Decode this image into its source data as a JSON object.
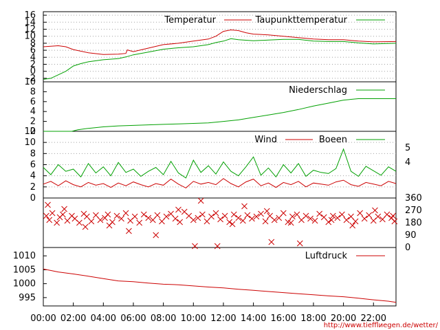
{
  "colors": {
    "red": "#cc0000",
    "green": "#00a000",
    "grid": "#a0a0a0",
    "frame": "#000000"
  },
  "credit": "http://www.tiefflиegen.de/wetter/",
  "x_axis": {
    "range_hours": [
      0,
      23.5
    ],
    "tick_hours": [
      0,
      2,
      4,
      6,
      8,
      10,
      12,
      14,
      16,
      18,
      20,
      22
    ],
    "tick_labels": [
      "00:00",
      "02:00",
      "04:00",
      "06:00",
      "08:00",
      "10:00",
      "12:00",
      "14:00",
      "16:00",
      "18:00",
      "20:00",
      "22:00"
    ]
  },
  "chart_data": [
    {
      "type": "line",
      "panel": "temperature",
      "ylim": [
        -3,
        17
      ],
      "y_ticks": [
        -2,
        0,
        2,
        4,
        6,
        8,
        10,
        12,
        14,
        16
      ],
      "y_tick_labels": [
        "-2",
        "0",
        "2",
        "4",
        "6",
        "8",
        "10",
        "12",
        "14",
        "16"
      ],
      "grid": true,
      "legend": "top-right",
      "series": [
        {
          "name": "Temperatur",
          "color": "#cc0000",
          "x": [
            0,
            1,
            1.5,
            2,
            3,
            4,
            5,
            5.5,
            5.6,
            6,
            7,
            8,
            9,
            10,
            11,
            11.5,
            12,
            12.5,
            13,
            13.5,
            14,
            15,
            16,
            17,
            18,
            19,
            20,
            21,
            22,
            23.5
          ],
          "y": [
            7,
            7.3,
            7,
            6.2,
            5.3,
            4.8,
            4.9,
            5.1,
            6.1,
            5.6,
            6.6,
            7.6,
            8,
            8.6,
            9.2,
            10,
            11.4,
            11.8,
            11.6,
            11,
            10.6,
            10.4,
            10,
            9.6,
            9.2,
            9,
            9,
            8.6,
            8.4,
            8.5
          ]
        },
        {
          "name": "Taupunkttemperatur",
          "color": "#00a000",
          "x": [
            0,
            0.5,
            1,
            1.5,
            2,
            2.5,
            3,
            4,
            5,
            5.5,
            6,
            7,
            8,
            9,
            10,
            11,
            11.5,
            12,
            12.5,
            13,
            14,
            15,
            16,
            17,
            18,
            19,
            20,
            21,
            22,
            23.5
          ],
          "y": [
            -2.3,
            -2,
            -1,
            0,
            1.5,
            2.2,
            2.7,
            3.3,
            3.6,
            4.1,
            4.7,
            5.5,
            6.3,
            6.7,
            7,
            7.6,
            8.2,
            8.6,
            9.3,
            9,
            8.7,
            8.9,
            9.1,
            9.1,
            8.6,
            8.5,
            8.5,
            8.1,
            7.8,
            8
          ]
        }
      ]
    },
    {
      "type": "line",
      "panel": "precipitation",
      "ylim": [
        0,
        10
      ],
      "y_ticks": [
        0,
        2,
        4,
        6,
        8,
        10
      ],
      "y_tick_labels": [
        "0",
        "2",
        "4",
        "6",
        "8",
        "10"
      ],
      "grid": false,
      "legend": "top-right",
      "series": [
        {
          "name": "Niederschlag",
          "color": "#00a000",
          "x": [
            0,
            1.9,
            2.3,
            3,
            4,
            5,
            6,
            7,
            8,
            9,
            10,
            11,
            12,
            13,
            14,
            15,
            16,
            17,
            18,
            19,
            20,
            21,
            22,
            23.5
          ],
          "y": [
            0,
            0,
            0.3,
            0.6,
            0.9,
            1.1,
            1.2,
            1.3,
            1.4,
            1.5,
            1.6,
            1.7,
            2,
            2.3,
            2.8,
            3.3,
            3.8,
            4.4,
            5.1,
            5.7,
            6.3,
            6.6,
            6.6,
            6.6
          ]
        }
      ]
    },
    {
      "type": "line",
      "panel": "wind",
      "ylim": [
        0,
        12
      ],
      "y_ticks": [
        0,
        2,
        4,
        6,
        8,
        10,
        12
      ],
      "y_tick_labels": [
        "0",
        "2",
        "4",
        "6",
        "8",
        "10",
        "12"
      ],
      "y2_ticks": [
        4,
        5
      ],
      "y2_tick_labels": [
        "4",
        "5"
      ],
      "grid": true,
      "legend": "top-right",
      "series": [
        {
          "name": "Wind",
          "color": "#cc0000",
          "x": [
            0,
            0.5,
            1,
            1.5,
            2,
            2.5,
            3,
            3.5,
            4,
            4.5,
            5,
            5.5,
            6,
            6.5,
            7,
            7.5,
            8,
            8.5,
            9,
            9.5,
            10,
            10.5,
            11,
            11.5,
            12,
            12.5,
            13,
            13.5,
            14,
            14.5,
            15,
            15.5,
            16,
            16.5,
            17,
            17.5,
            18,
            18.5,
            19,
            19.5,
            20,
            20.5,
            21,
            21.5,
            22,
            22.5,
            23,
            23.5
          ],
          "y": [
            2.5,
            3,
            2.2,
            3.1,
            2.4,
            2,
            2.8,
            2.3,
            2.6,
            1.9,
            2.7,
            2.2,
            2.9,
            2.4,
            2,
            2.6,
            2.3,
            3.4,
            2.5,
            1.8,
            3,
            2.5,
            2.8,
            2.4,
            3.5,
            2.6,
            2,
            2.9,
            3.4,
            2.2,
            2.7,
            1.9,
            2.8,
            2.4,
            3,
            2,
            2.7,
            2.5,
            2.3,
            2.9,
            3.2,
            2.4,
            2.1,
            2.8,
            2.5,
            2.2,
            3,
            2.6
          ]
        },
        {
          "name": "Boeen",
          "color": "#00a000",
          "x": [
            0,
            0.5,
            1,
            1.5,
            2,
            2.5,
            3,
            3.5,
            4,
            4.5,
            5,
            5.5,
            6,
            6.5,
            7,
            7.5,
            8,
            8.5,
            9,
            9.5,
            10,
            10.5,
            11,
            11.5,
            12,
            12.5,
            13,
            13.5,
            14,
            14.5,
            15,
            15.5,
            16,
            16.5,
            17,
            17.5,
            18,
            18.5,
            19,
            19.5,
            20,
            20.5,
            21,
            21.5,
            22,
            22.5,
            23,
            23.5
          ],
          "y": [
            5.5,
            4.2,
            6,
            4.8,
            5.2,
            3.8,
            6.2,
            4.5,
            5.6,
            4,
            6.4,
            4.6,
            5.2,
            3.9,
            4.8,
            5.5,
            4.2,
            6.6,
            4.5,
            3.6,
            6.8,
            4.6,
            5.8,
            4.3,
            6.5,
            4.8,
            4,
            5.6,
            7.4,
            4.1,
            5.4,
            3.8,
            6,
            4.5,
            6.2,
            3.9,
            5,
            4.6,
            4.4,
            5.3,
            8.8,
            4.8,
            3.9,
            5.7,
            4.9,
            4.1,
            5.6,
            4.8
          ]
        }
      ]
    },
    {
      "type": "scatter",
      "panel": "wind-direction",
      "ylim": [
        0,
        360
      ],
      "y2_ticks": [
        0,
        90,
        180,
        270,
        360
      ],
      "y2_tick_labels": [
        "0",
        "90",
        "180",
        "270",
        "360"
      ],
      "grid": false,
      "series": [
        {
          "color": "#cc0000",
          "x": [
            0.2,
            0.4,
            0.6,
            0.9,
            1.1,
            1.3,
            1.6,
            1.9,
            2.1,
            2.4,
            2.7,
            2.9,
            3.2,
            3.5,
            3.8,
            4.1,
            4.3,
            4.6,
            4.9,
            5.2,
            5.5,
            5.8,
            6.1,
            6.4,
            6.7,
            7,
            7.3,
            7.6,
            7.9,
            8.2,
            8.5,
            8.8,
            9.1,
            9.4,
            9.7,
            10,
            10.3,
            10.6,
            10.9,
            11.2,
            11.5,
            11.8,
            12.1,
            12.4,
            12.7,
            13,
            13.3,
            13.6,
            13.9,
            14.2,
            14.5,
            14.8,
            15.1,
            15.4,
            15.7,
            16,
            16.3,
            16.6,
            16.9,
            17.2,
            17.5,
            17.8,
            18.1,
            18.4,
            18.7,
            19,
            19.3,
            19.6,
            19.9,
            20.2,
            20.5,
            20.8,
            21.1,
            21.4,
            21.7,
            22,
            22.3,
            22.6,
            22.9,
            23.2,
            23.4,
            0.3,
            1.4,
            2.8,
            4.4,
            5.7,
            7.5,
            9,
            10.1,
            10.5,
            11.6,
            12.6,
            13.4,
            14.9,
            15.2,
            16.5,
            17.1,
            19.2,
            20.6,
            22.1,
            23.3
          ],
          "y": [
            230,
            200,
            250,
            180,
            220,
            240,
            195,
            230,
            210,
            180,
            245,
            225,
            190,
            235,
            200,
            215,
            240,
            185,
            230,
            210,
            250,
            195,
            225,
            180,
            240,
            215,
            200,
            235,
            190,
            225,
            245,
            210,
            185,
            260,
            230,
            200,
            215,
            240,
            190,
            225,
            250,
            205,
            230,
            185,
            240,
            215,
            195,
            235,
            210,
            225,
            245,
            190,
            230,
            200,
            215,
            250,
            185,
            225,
            240,
            200,
            230,
            210,
            195,
            245,
            220,
            185,
            230,
            215,
            240,
            200,
            225,
            190,
            250,
            210,
            235,
            195,
            225,
            205,
            240,
            215,
            190,
            310,
            280,
            150,
            160,
            120,
            90,
            275,
            10,
            340,
            10,
            170,
            300,
            265,
            40,
            180,
            30,
            200,
            160,
            270,
            230
          ]
        }
      ]
    },
    {
      "type": "line",
      "panel": "pressure",
      "ylim": [
        992,
        1013
      ],
      "y_ticks": [
        995,
        1000,
        1005,
        1010
      ],
      "y_tick_labels": [
        "995",
        "1000",
        "1005",
        "1010"
      ],
      "grid": false,
      "legend": "top-right",
      "series": [
        {
          "name": "Luftdruck",
          "color": "#cc0000",
          "x": [
            0,
            1,
            2,
            3,
            4,
            5,
            6,
            7,
            8,
            9,
            10,
            11,
            12,
            13,
            14,
            15,
            16,
            17,
            18,
            19,
            20,
            21,
            22,
            23,
            23.5
          ],
          "y": [
            1005.3,
            1004.2,
            1003.5,
            1002.7,
            1001.8,
            1001,
            1000.7,
            1000.2,
            999.8,
            999.6,
            999.2,
            998.8,
            998.5,
            998,
            997.6,
            997.2,
            996.8,
            996.4,
            996,
            995.6,
            995.3,
            994.8,
            994.2,
            993.7,
            993.3
          ]
        }
      ]
    }
  ]
}
